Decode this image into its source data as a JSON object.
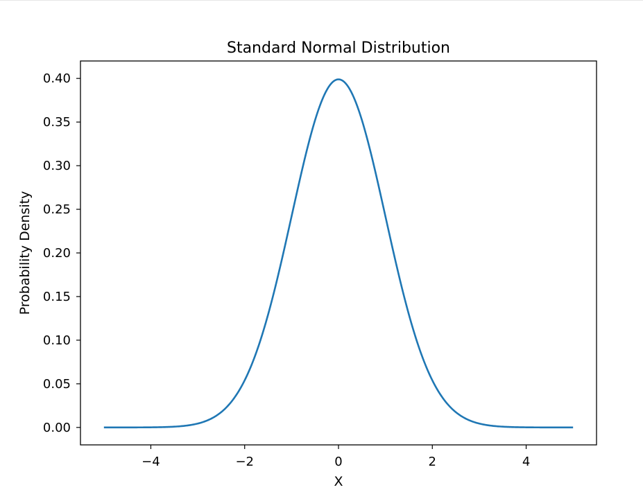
{
  "chart_data": {
    "type": "line",
    "title": "Standard Normal Distribution",
    "xlabel": "X",
    "ylabel": "Probability Density",
    "xlim": [
      -5.5,
      5.5
    ],
    "ylim": [
      -0.02,
      0.42
    ],
    "grid": false,
    "x_ticks": [
      -4,
      -2,
      0,
      2,
      4
    ],
    "x_tick_labels": [
      "−4",
      "−2",
      "0",
      "2",
      "4"
    ],
    "y_ticks": [
      0.0,
      0.05,
      0.1,
      0.15,
      0.2,
      0.25,
      0.3,
      0.35,
      0.4
    ],
    "y_tick_labels": [
      "0.00",
      "0.05",
      "0.10",
      "0.15",
      "0.20",
      "0.25",
      "0.30",
      "0.35",
      "0.40"
    ],
    "series": [
      {
        "color": "#1f77b4",
        "x": [
          -5.0,
          -4.5,
          -4.0,
          -3.5,
          -3.0,
          -2.75,
          -2.5,
          -2.25,
          -2.0,
          -1.75,
          -1.5,
          -1.25,
          -1.0,
          -0.75,
          -0.5,
          -0.25,
          0.0,
          0.25,
          0.5,
          0.75,
          1.0,
          1.25,
          1.5,
          1.75,
          2.0,
          2.25,
          2.5,
          2.75,
          3.0,
          3.5,
          4.0,
          4.5,
          5.0
        ],
        "y": [
          0.0,
          0.0,
          0.0001,
          0.0009,
          0.0044,
          0.0091,
          0.0175,
          0.0317,
          0.054,
          0.0863,
          0.1295,
          0.1826,
          0.242,
          0.3011,
          0.3521,
          0.3867,
          0.3989,
          0.3867,
          0.3521,
          0.3011,
          0.242,
          0.1826,
          0.1295,
          0.0863,
          0.054,
          0.0317,
          0.0175,
          0.0091,
          0.0044,
          0.0009,
          0.0001,
          0.0,
          0.0
        ]
      }
    ]
  }
}
